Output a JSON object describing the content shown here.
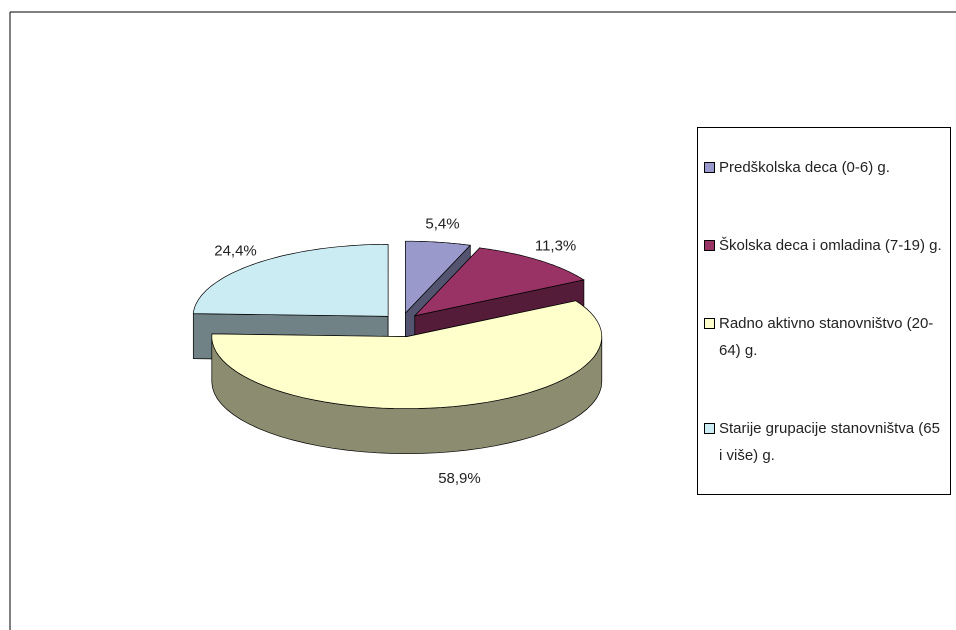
{
  "chart_data": {
    "type": "pie3d",
    "categories": [
      "Predškolska deca (0-6) g.",
      "Školska deca i  omladina (7-19) g.",
      "Radno aktivno stanovništvo (20-64) g.",
      "Starije grupacije stanovništva (65 i više) g."
    ],
    "values": [
      5.4,
      11.3,
      58.9,
      24.4
    ],
    "value_labels": [
      "5,4%",
      "11,3%",
      "58,9%",
      "24,4%"
    ],
    "colors": [
      "#9999cc",
      "#993366",
      "#ffffcc",
      "#ccecf4"
    ],
    "legend": "right"
  }
}
